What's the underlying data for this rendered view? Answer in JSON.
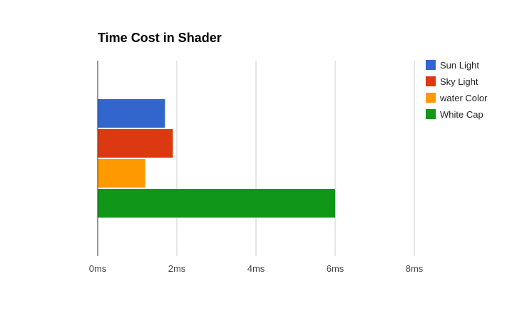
{
  "chart_data": {
    "type": "bar",
    "orientation": "horizontal",
    "title": "Time Cost in Shader",
    "xlabel": "",
    "ylabel": "",
    "categories": [
      ""
    ],
    "series": [
      {
        "name": "Sun Light",
        "values": [
          1.7
        ],
        "color": "#3366cc"
      },
      {
        "name": "Sky Light",
        "values": [
          1.9
        ],
        "color": "#dc3912"
      },
      {
        "name": "water Color",
        "values": [
          1.2
        ],
        "color": "#ff9900"
      },
      {
        "name": "White Cap",
        "values": [
          6.0
        ],
        "color": "#109618"
      }
    ],
    "xlim": [
      0,
      8
    ],
    "ticks": [
      {
        "value": 0,
        "label": "0ms"
      },
      {
        "value": 2,
        "label": "2ms"
      },
      {
        "value": 4,
        "label": "4ms"
      },
      {
        "value": 6,
        "label": "6ms"
      },
      {
        "value": 8,
        "label": "8ms"
      }
    ],
    "grid": true,
    "legend_position": "right"
  }
}
